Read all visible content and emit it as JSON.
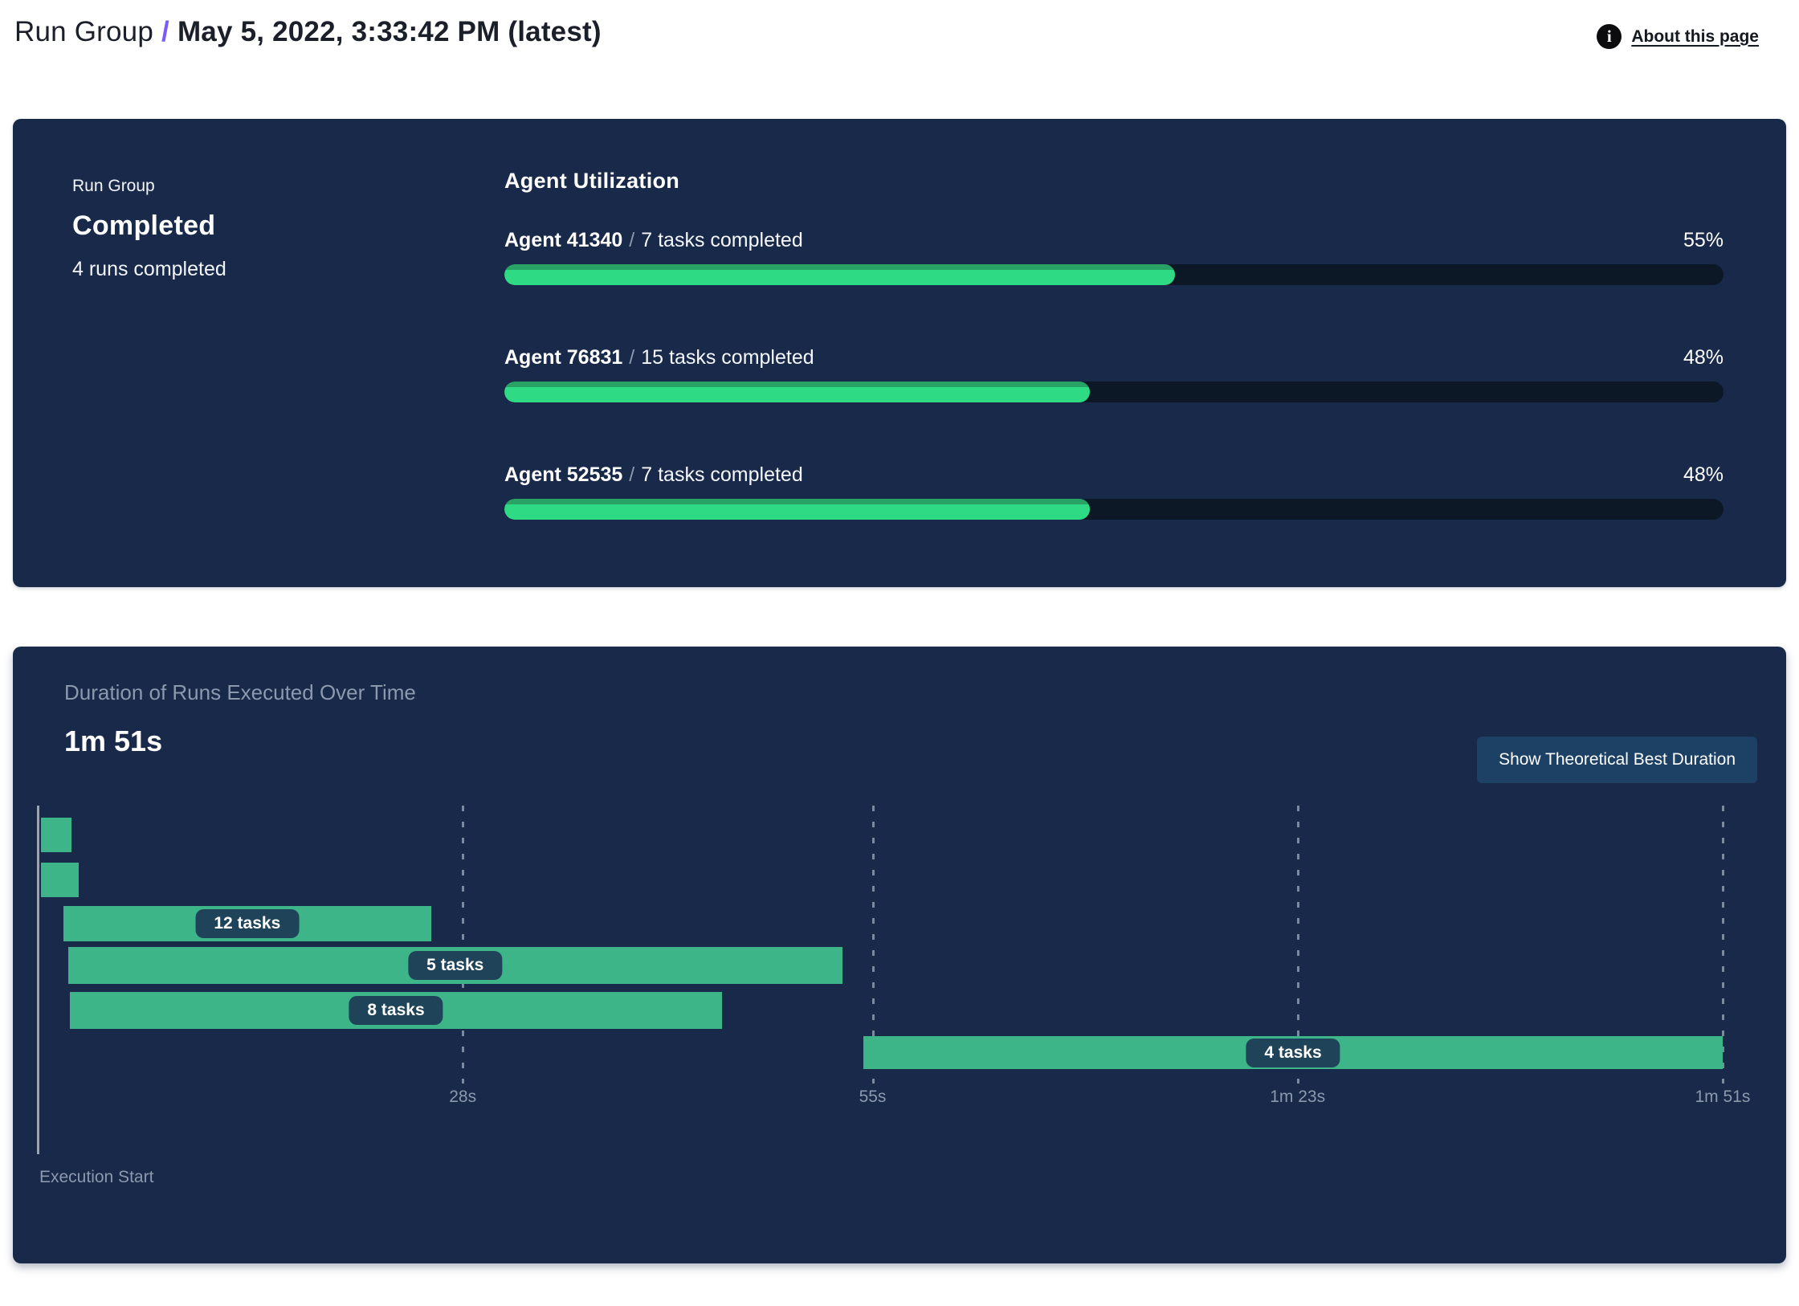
{
  "header": {
    "breadcrumb_root": "Run Group",
    "separator": "/",
    "title": "May 5, 2022, 3:33:42 PM (latest)",
    "about_link": "About this page",
    "info_icon_glyph": "i"
  },
  "summary": {
    "label": "Run Group",
    "status": "Completed",
    "runs_completed": "4 runs completed"
  },
  "utilization": {
    "title": "Agent Utilization",
    "separator": "/",
    "agents": [
      {
        "name": "Agent 41340",
        "tasks": "7 tasks completed",
        "percent": "55%",
        "value": 55
      },
      {
        "name": "Agent 76831",
        "tasks": "15 tasks completed",
        "percent": "48%",
        "value": 48
      },
      {
        "name": "Agent 52535",
        "tasks": "7 tasks completed",
        "percent": "48%",
        "value": 48
      }
    ]
  },
  "duration": {
    "title": "Duration of Runs Executed Over Time",
    "total": "1m 51s",
    "button_label": "Show Theoretical Best Duration",
    "axis_label": "Execution Start"
  },
  "colors": {
    "panel_navy": "#18294a",
    "progress_green": "#2edb84",
    "gantt_green": "#3eb489",
    "pill_navy": "#1f4459",
    "button_blue": "#1d4065",
    "accent_purple": "#7a5af8",
    "muted_text": "#8c99ad",
    "track_dark": "#0d1827"
  },
  "chart_data": [
    {
      "type": "bar",
      "title": "Agent Utilization",
      "categories": [
        "Agent 41340",
        "Agent 76831",
        "Agent 52535"
      ],
      "values": [
        55,
        48,
        48
      ],
      "unit": "%",
      "annotations": [
        "7 tasks completed",
        "15 tasks completed",
        "7 tasks completed"
      ],
      "xlim": [
        0,
        100
      ]
    },
    {
      "type": "gantt",
      "title": "Duration of Runs Executed Over Time",
      "total_duration": "1m 51s",
      "xlabel": "Execution Start",
      "xlim_seconds": [
        0,
        111
      ],
      "grid": "dashed-vertical",
      "ticks": [
        {
          "sec": 28,
          "label": "28s"
        },
        {
          "sec": 55,
          "label": "55s"
        },
        {
          "sec": 83,
          "label": "1m 23s"
        },
        {
          "sec": 111,
          "label": "1m 51s"
        }
      ],
      "bars": [
        {
          "start_s": 0.2,
          "end_s": 2.2,
          "label": ""
        },
        {
          "start_s": 0.2,
          "end_s": 2.7,
          "label": ""
        },
        {
          "start_s": 1.7,
          "end_s": 25.9,
          "label": "12 tasks"
        },
        {
          "start_s": 2.0,
          "end_s": 53.0,
          "label": "5 tasks"
        },
        {
          "start_s": 2.1,
          "end_s": 45.1,
          "label": "8 tasks"
        },
        {
          "start_s": 54.4,
          "end_s": 111,
          "label": "4 tasks"
        }
      ]
    }
  ]
}
